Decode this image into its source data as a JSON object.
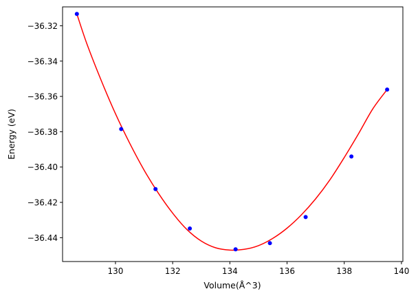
{
  "chart_data": {
    "type": "scatter",
    "title": "",
    "xlabel": "Volume(Å^3)",
    "ylabel": "Energy (eV)",
    "xlim": [
      128.15,
      140.05
    ],
    "ylim": [
      -36.4535,
      -36.3093
    ],
    "grid": false,
    "legend": "none",
    "x_ticks": [
      130,
      132,
      134,
      136,
      138,
      140
    ],
    "x_tick_labels": [
      "130",
      "132",
      "134",
      "136",
      "138",
      "140"
    ],
    "y_ticks": [
      -36.32,
      -36.34,
      -36.36,
      -36.38,
      -36.4,
      -36.42,
      -36.44
    ],
    "y_tick_labels": [
      "−36.32",
      "−36.34",
      "−36.36",
      "−36.38",
      "−36.40",
      "−36.42",
      "−36.44"
    ],
    "points": {
      "color": "#0000ff",
      "x": [
        128.65,
        130.2,
        131.4,
        132.6,
        134.2,
        135.4,
        136.65,
        138.25,
        139.5
      ],
      "y": [
        -36.3133,
        -36.3785,
        -36.4125,
        -36.4348,
        -36.4466,
        -36.4431,
        -36.4283,
        -36.394,
        -36.3561
      ]
    },
    "fit": {
      "type": "line",
      "color": "#ff0000",
      "x": [
        128.65,
        129.0,
        129.5,
        130.0,
        130.5,
        131.0,
        131.5,
        132.0,
        132.5,
        133.0,
        133.5,
        134.0,
        134.5,
        135.0,
        135.5,
        136.0,
        136.5,
        137.0,
        137.5,
        138.0,
        138.5,
        139.0,
        139.5
      ],
      "y": [
        -36.3133,
        -36.3302,
        -36.3509,
        -36.3698,
        -36.3866,
        -36.4017,
        -36.4148,
        -36.4261,
        -36.4354,
        -36.4419,
        -36.4457,
        -36.447,
        -36.4466,
        -36.4445,
        -36.4404,
        -36.4346,
        -36.4271,
        -36.418,
        -36.4072,
        -36.3946,
        -36.3811,
        -36.367,
        -36.3561
      ]
    }
  }
}
